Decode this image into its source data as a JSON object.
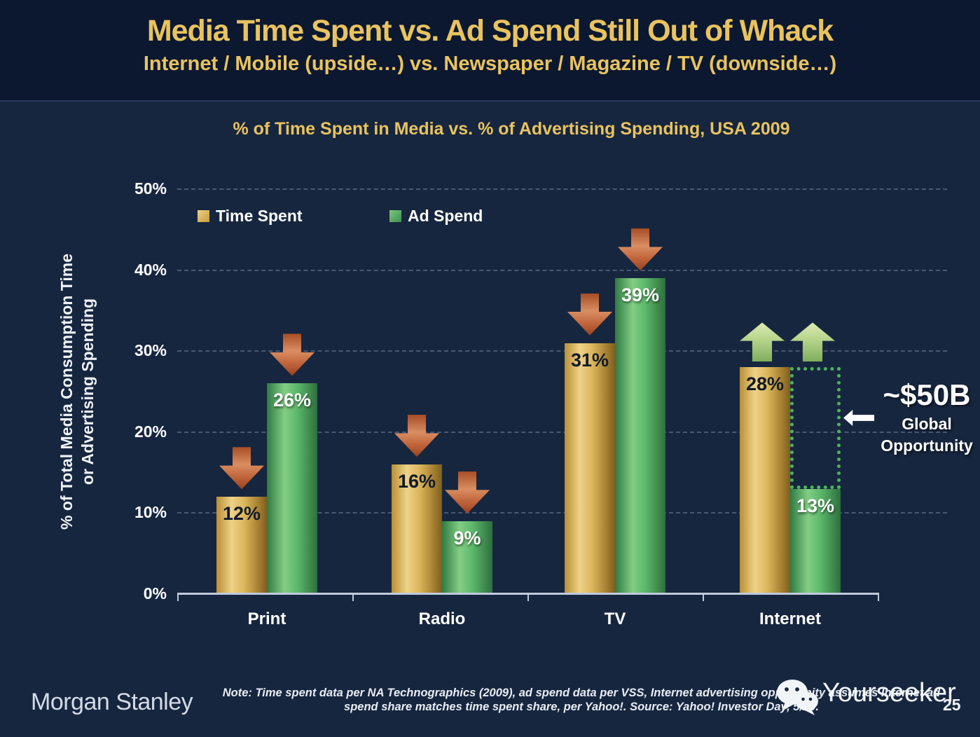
{
  "slide": {
    "title": "Media Time Spent vs. Ad Spend Still Out of Whack",
    "subtitle": "Internet / Mobile (upside…) vs. Newspaper / Magazine / TV (downside…)",
    "brand": "Morgan Stanley",
    "note_line1": "Note: Time spent data per NA Technographics (2009), ad spend data per VSS, Internet advertising opportunity assumes Internet ad",
    "note_line2": "spend share matches time spent share, per Yahoo!. Source: Yahoo! Investor Day, 5/10.",
    "watermark_text": "Yourseeker",
    "page_number": "25"
  },
  "colors": {
    "background": "#17263f",
    "header_background": "#0b1830",
    "title_gold": "#e9c35f",
    "bar_gold": "#dcb65b",
    "bar_green": "#5cb86b",
    "down_arrow_red": "#c2663c",
    "up_arrow_green": "#b5d48b",
    "opportunity_box_green": "#4cb45e",
    "axis": "#bfcbdc",
    "label_white": "#ffffff",
    "label_dark": "#10192b"
  },
  "chart_data": {
    "type": "bar",
    "title": "% of Time Spent in Media vs. % of Advertising Spending, USA 2009",
    "categories": [
      "Print",
      "Radio",
      "TV",
      "Internet"
    ],
    "series": [
      {
        "name": "Time Spent",
        "style": "gold",
        "values": [
          12,
          16,
          31,
          28
        ],
        "markers": [
          "down",
          "down",
          "down",
          "up"
        ]
      },
      {
        "name": "Ad Spend",
        "style": "green",
        "values": [
          26,
          9,
          39,
          13
        ],
        "markers": [
          "down",
          "down",
          "down",
          "up"
        ]
      }
    ],
    "ylabel_line1": "% of Total Media Consumption Time",
    "ylabel_line2": "or Advertising Spending",
    "ylim": [
      0,
      50
    ],
    "yticks": [
      "0%",
      "10%",
      "20%",
      "30%",
      "40%",
      "50%"
    ],
    "ytick_step": 10,
    "grid": "dashed-horizontal",
    "legend_position": "inside-top-left",
    "value_suffix": "%",
    "opportunity_box": {
      "category": "Internet",
      "from": 13,
      "to": 28
    },
    "annotation": {
      "value": "~$50B",
      "label_line1": "Global",
      "label_line2": "Opportunity"
    }
  }
}
